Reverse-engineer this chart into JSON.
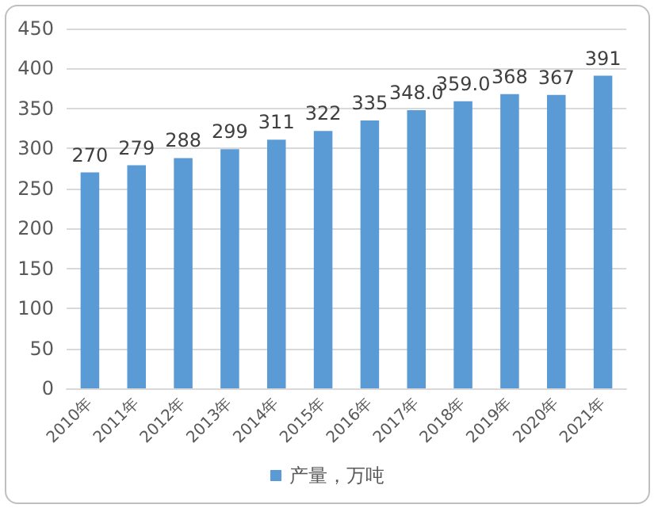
{
  "chart_data": {
    "type": "bar",
    "categories": [
      "2010年",
      "2011年",
      "2012年",
      "2013年",
      "2014年",
      "2015年",
      "2016年",
      "2017年",
      "2018年",
      "2019年",
      "2020年",
      "2021年"
    ],
    "series": [
      {
        "name": "产量，万吨",
        "color": "#5b9bd5",
        "values": [
          270,
          279,
          288,
          299,
          311,
          322,
          335,
          348,
          359,
          368,
          367,
          391
        ],
        "value_labels": [
          "270",
          "279",
          "288",
          "299",
          "311",
          "322",
          "335",
          "348.0",
          "359.0",
          "368",
          "367",
          "391"
        ]
      }
    ],
    "ylim": [
      0,
      450
    ],
    "yticks": [
      0,
      50,
      100,
      150,
      200,
      250,
      300,
      350,
      400,
      450
    ],
    "grid": "y",
    "legend": "bottom"
  }
}
